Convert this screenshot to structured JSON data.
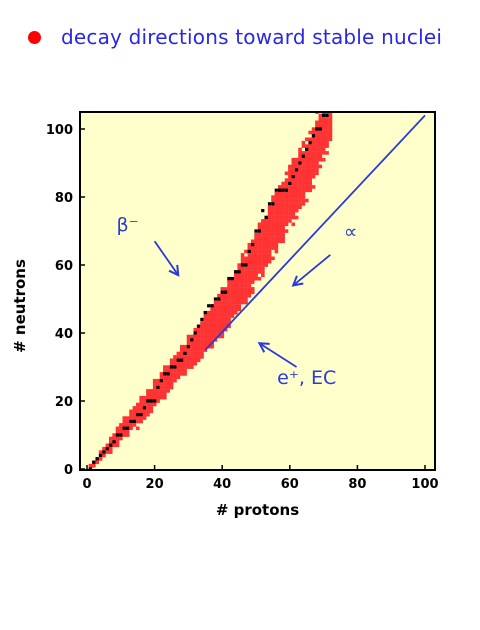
{
  "title": "decay directions toward stable nuclei",
  "colors": {
    "bullet": "#ff0000",
    "title": "#2828e0",
    "plot_background": "#ffffcc",
    "unstable_band": "#ff3333",
    "stable_nuclei": "#000000",
    "annotation": "#2b3bd8"
  },
  "chart_data": {
    "type": "scatter",
    "title": "decay directions toward stable nuclei",
    "xlabel": "# protons",
    "ylabel": "# neutrons",
    "xlim": [
      0,
      100
    ],
    "ylim": [
      0,
      100
    ],
    "xticks": [
      0,
      20,
      40,
      60,
      80,
      100
    ],
    "yticks": [
      0,
      20,
      40,
      60,
      80,
      100
    ],
    "grid": false,
    "series": [
      {
        "name": "",
        "kind": "known nuclei band (red)",
        "centerline": [
          [
            1,
            0
          ],
          [
            5,
            5
          ],
          [
            10,
            11
          ],
          [
            15,
            16
          ],
          [
            20,
            22
          ],
          [
            25,
            28
          ],
          [
            30,
            34
          ],
          [
            35,
            40
          ],
          [
            40,
            46
          ],
          [
            45,
            54
          ],
          [
            50,
            62
          ],
          [
            55,
            71
          ],
          [
            60,
            80
          ],
          [
            65,
            88
          ],
          [
            70,
            100
          ],
          [
            72,
            104
          ]
        ],
        "half_width_neutrons": [
          [
            1,
            1
          ],
          [
            10,
            3
          ],
          [
            20,
            4
          ],
          [
            30,
            5
          ],
          [
            40,
            7
          ],
          [
            50,
            8
          ],
          [
            60,
            9
          ],
          [
            70,
            9
          ]
        ]
      },
      {
        "name": "",
        "kind": "stable nuclei (black)",
        "points": [
          [
            1,
            0
          ],
          [
            2,
            2
          ],
          [
            3,
            3
          ],
          [
            4,
            4
          ],
          [
            5,
            5
          ],
          [
            6,
            6
          ],
          [
            7,
            7
          ],
          [
            8,
            8
          ],
          [
            9,
            10
          ],
          [
            10,
            10
          ],
          [
            11,
            12
          ],
          [
            12,
            12
          ],
          [
            13,
            14
          ],
          [
            14,
            14
          ],
          [
            15,
            16
          ],
          [
            16,
            16
          ],
          [
            17,
            18
          ],
          [
            18,
            20
          ],
          [
            19,
            20
          ],
          [
            20,
            20
          ],
          [
            21,
            24
          ],
          [
            22,
            26
          ],
          [
            23,
            28
          ],
          [
            24,
            28
          ],
          [
            25,
            30
          ],
          [
            26,
            30
          ],
          [
            27,
            32
          ],
          [
            28,
            32
          ],
          [
            29,
            34
          ],
          [
            30,
            36
          ],
          [
            31,
            38
          ],
          [
            32,
            40
          ],
          [
            33,
            42
          ],
          [
            34,
            44
          ],
          [
            35,
            46
          ],
          [
            36,
            48
          ],
          [
            37,
            48
          ],
          [
            38,
            50
          ],
          [
            39,
            50
          ],
          [
            40,
            52
          ],
          [
            41,
            52
          ],
          [
            42,
            56
          ],
          [
            43,
            56
          ],
          [
            44,
            58
          ],
          [
            45,
            58
          ],
          [
            46,
            60
          ],
          [
            47,
            60
          ],
          [
            48,
            64
          ],
          [
            49,
            66
          ],
          [
            50,
            70
          ],
          [
            51,
            70
          ],
          [
            52,
            76
          ],
          [
            53,
            74
          ],
          [
            54,
            78
          ],
          [
            55,
            78
          ],
          [
            56,
            82
          ],
          [
            57,
            82
          ],
          [
            58,
            82
          ],
          [
            59,
            82
          ],
          [
            60,
            84
          ],
          [
            61,
            86
          ],
          [
            62,
            88
          ],
          [
            63,
            90
          ],
          [
            64,
            92
          ],
          [
            65,
            94
          ],
          [
            66,
            96
          ],
          [
            67,
            98
          ],
          [
            68,
            100
          ],
          [
            69,
            100
          ],
          [
            70,
            104
          ],
          [
            71,
            104
          ]
        ]
      },
      {
        "name": "",
        "kind": "N = Z line",
        "points": [
          [
            35,
            35
          ],
          [
            100,
            104
          ]
        ]
      }
    ],
    "annotations": [
      {
        "label": "β⁻",
        "text_at": [
          12,
          70
        ],
        "arrow_from": [
          20,
          67
        ],
        "arrow_to": [
          27,
          57
        ]
      },
      {
        "label": "∝",
        "text_at": [
          78,
          68
        ],
        "arrow_from": [
          72,
          63
        ],
        "arrow_to": [
          61,
          54
        ]
      },
      {
        "label": "e⁺, EC",
        "text_at": [
          65,
          25
        ],
        "arrow_from": [
          62,
          30
        ],
        "arrow_to": [
          51,
          37
        ]
      }
    ]
  }
}
